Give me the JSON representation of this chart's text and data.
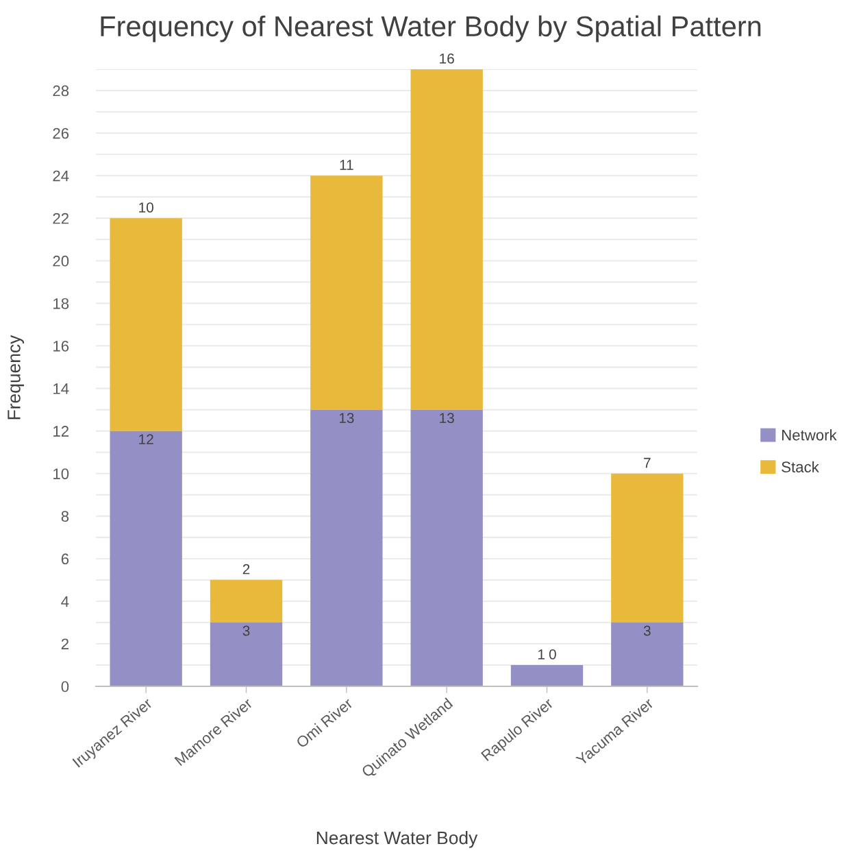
{
  "chart_data": {
    "type": "bar",
    "title": "Frequency of Nearest Water Body by Spatial Pattern",
    "xlabel": "Nearest Water Body",
    "ylabel": "Frequency",
    "categories": [
      "Iruyanez River",
      "Mamore River",
      "Omi River",
      "Quinato Wetland",
      "Rapulo River",
      "Yacuma River"
    ],
    "series": [
      {
        "name": "Network",
        "color": "#9490c5",
        "values": [
          12,
          3,
          13,
          13,
          1,
          3
        ]
      },
      {
        "name": "Stack",
        "color": "#e8b93a",
        "values": [
          10,
          2,
          11,
          16,
          0,
          7
        ]
      }
    ],
    "stacked": true,
    "ylim": [
      0,
      29
    ],
    "yticks": [
      0,
      {
        "value": 1,
        "label": null
      },
      2,
      {
        "value": 3,
        "label": null
      },
      4,
      {
        "value": 5,
        "label": null
      },
      6,
      {
        "value": 7,
        "label": null
      },
      8,
      {
        "value": 9,
        "label": null
      },
      10,
      {
        "value": 11,
        "label": null
      },
      12,
      {
        "value": 13,
        "label": null
      },
      14,
      {
        "value": 15,
        "label": null
      },
      16,
      {
        "value": 17,
        "label": null
      },
      18,
      {
        "value": 19,
        "label": null
      },
      20,
      {
        "value": 21,
        "label": null
      },
      22,
      {
        "value": 23,
        "label": null
      },
      24,
      {
        "value": 25,
        "label": null
      },
      26,
      {
        "value": 27,
        "label": null
      },
      28,
      {
        "value": 29,
        "label": null
      }
    ],
    "grid": "y",
    "legend": "right",
    "data_labels": true
  }
}
